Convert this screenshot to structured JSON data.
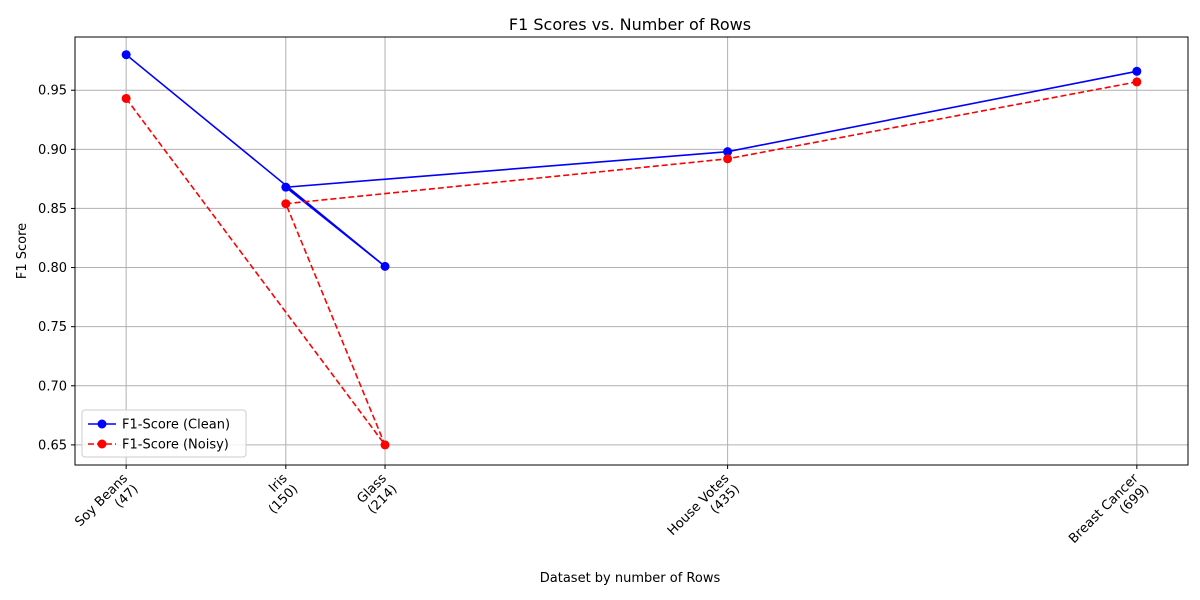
{
  "chart_data": {
    "type": "line",
    "title": "F1 Scores vs. Number of Rows",
    "xlabel": "Dataset by number of Rows",
    "ylabel": "F1 Score",
    "x": [
      47,
      150,
      214,
      435,
      699
    ],
    "x_tick_labels": [
      [
        "Soy Beans",
        "(47)"
      ],
      [
        "Iris",
        "(150)"
      ],
      [
        "Glass",
        "(214)"
      ],
      [
        "House Votes",
        "(435)"
      ],
      [
        "Breast Cancer",
        "(699)"
      ]
    ],
    "x_order": [
      47,
      214,
      150,
      435,
      699
    ],
    "xlim": [
      14,
      732
    ],
    "ylim": [
      0.633,
      0.995
    ],
    "y_ticks": [
      0.65,
      0.7,
      0.75,
      0.8,
      0.85,
      0.9,
      0.95
    ],
    "y_tick_labels": [
      "0.65",
      "0.70",
      "0.75",
      "0.80",
      "0.85",
      "0.90",
      "0.95"
    ],
    "grid": true,
    "legend_position": "lower-left",
    "series": [
      {
        "name": "F1-Score (Clean)",
        "color": "#0000ff",
        "dash": "solid",
        "marker": "circle",
        "values": [
          0.98,
          0.868,
          0.801,
          0.898,
          0.966
        ]
      },
      {
        "name": "F1-Score (Noisy)",
        "color": "#ff0000",
        "dash": "dashed",
        "marker": "circle",
        "values": [
          0.943,
          0.854,
          0.65,
          0.892,
          0.957
        ]
      }
    ]
  }
}
